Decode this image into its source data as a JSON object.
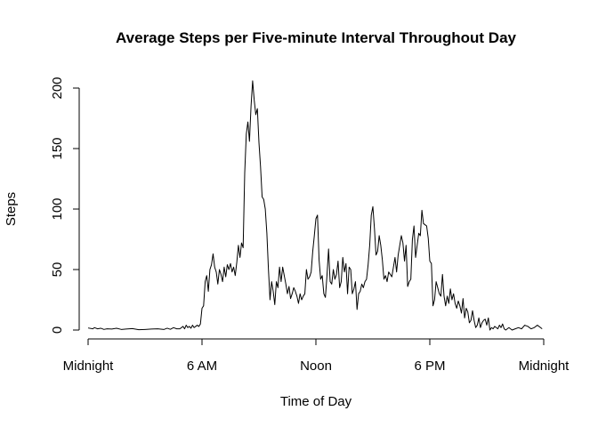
{
  "chart_data": {
    "type": "line",
    "title": "Average Steps per Five-minute Interval Throughout Day",
    "xlabel": "Time of Day",
    "ylabel": "Steps",
    "x_unit": "minutes since midnight",
    "xlim": [
      0,
      1440
    ],
    "ylim": [
      0,
      210
    ],
    "grid": false,
    "x_ticks": [
      {
        "value": 0,
        "label": "Midnight"
      },
      {
        "value": 360,
        "label": "6 AM"
      },
      {
        "value": 720,
        "label": "Noon"
      },
      {
        "value": 1080,
        "label": "6 PM"
      },
      {
        "value": 1440,
        "label": "Midnight"
      }
    ],
    "y_ticks": [
      0,
      50,
      100,
      150,
      200
    ],
    "series": [
      {
        "points": [
          [
            0,
            1.7
          ],
          [
            15,
            1
          ],
          [
            20,
            2
          ],
          [
            30,
            1
          ],
          [
            40,
            1.5
          ],
          [
            50,
            0.5
          ],
          [
            60,
            1
          ],
          [
            75,
            0.8
          ],
          [
            90,
            1.5
          ],
          [
            105,
            0.5
          ],
          [
            120,
            0.8
          ],
          [
            140,
            1.2
          ],
          [
            160,
            0.3
          ],
          [
            180,
            0.5
          ],
          [
            200,
            0.8
          ],
          [
            220,
            1
          ],
          [
            240,
            0.5
          ],
          [
            250,
            1.5
          ],
          [
            260,
            0.6
          ],
          [
            270,
            2
          ],
          [
            280,
            1
          ],
          [
            290,
            1
          ],
          [
            300,
            3
          ],
          [
            305,
            1
          ],
          [
            310,
            4
          ],
          [
            315,
            2
          ],
          [
            320,
            3
          ],
          [
            325,
            1.5
          ],
          [
            330,
            4
          ],
          [
            335,
            2
          ],
          [
            340,
            3
          ],
          [
            345,
            4
          ],
          [
            350,
            3
          ],
          [
            355,
            5
          ],
          [
            360,
            18
          ],
          [
            365,
            20
          ],
          [
            370,
            40
          ],
          [
            375,
            45
          ],
          [
            380,
            32
          ],
          [
            385,
            50
          ],
          [
            390,
            54
          ],
          [
            395,
            63
          ],
          [
            400,
            52
          ],
          [
            405,
            48
          ],
          [
            410,
            38
          ],
          [
            415,
            50
          ],
          [
            420,
            46
          ],
          [
            425,
            40
          ],
          [
            430,
            52
          ],
          [
            435,
            44
          ],
          [
            440,
            54
          ],
          [
            445,
            50
          ],
          [
            450,
            55
          ],
          [
            455,
            48
          ],
          [
            460,
            52
          ],
          [
            465,
            45
          ],
          [
            470,
            56
          ],
          [
            475,
            70
          ],
          [
            480,
            60
          ],
          [
            485,
            72
          ],
          [
            490,
            68
          ],
          [
            495,
            130
          ],
          [
            500,
            162
          ],
          [
            505,
            172
          ],
          [
            510,
            156
          ],
          [
            515,
            185
          ],
          [
            520,
            206
          ],
          [
            525,
            190
          ],
          [
            530,
            178
          ],
          [
            535,
            183
          ],
          [
            540,
            155
          ],
          [
            545,
            135
          ],
          [
            550,
            110
          ],
          [
            555,
            108
          ],
          [
            560,
            100
          ],
          [
            565,
            80
          ],
          [
            570,
            50
          ],
          [
            575,
            25
          ],
          [
            580,
            40
          ],
          [
            585,
            32
          ],
          [
            590,
            21
          ],
          [
            595,
            40
          ],
          [
            600,
            35
          ],
          [
            605,
            52
          ],
          [
            610,
            40
          ],
          [
            615,
            52
          ],
          [
            620,
            45
          ],
          [
            625,
            38
          ],
          [
            630,
            30
          ],
          [
            635,
            36
          ],
          [
            640,
            26
          ],
          [
            645,
            30
          ],
          [
            650,
            35
          ],
          [
            655,
            32
          ],
          [
            660,
            28
          ],
          [
            665,
            22
          ],
          [
            670,
            30
          ],
          [
            675,
            25
          ],
          [
            680,
            28
          ],
          [
            685,
            30
          ],
          [
            690,
            50
          ],
          [
            695,
            42
          ],
          [
            700,
            44
          ],
          [
            705,
            48
          ],
          [
            710,
            65
          ],
          [
            715,
            78
          ],
          [
            720,
            92
          ],
          [
            725,
            95
          ],
          [
            730,
            58
          ],
          [
            735,
            42
          ],
          [
            740,
            45
          ],
          [
            745,
            30
          ],
          [
            750,
            27
          ],
          [
            755,
            45
          ],
          [
            760,
            67
          ],
          [
            765,
            40
          ],
          [
            770,
            38
          ],
          [
            775,
            50
          ],
          [
            780,
            42
          ],
          [
            785,
            46
          ],
          [
            790,
            57
          ],
          [
            795,
            35
          ],
          [
            800,
            40
          ],
          [
            805,
            60
          ],
          [
            810,
            48
          ],
          [
            815,
            55
          ],
          [
            820,
            30
          ],
          [
            825,
            52
          ],
          [
            830,
            50
          ],
          [
            835,
            30
          ],
          [
            840,
            34
          ],
          [
            845,
            40
          ],
          [
            850,
            17
          ],
          [
            855,
            30
          ],
          [
            860,
            32
          ],
          [
            865,
            38
          ],
          [
            870,
            35
          ],
          [
            875,
            40
          ],
          [
            880,
            42
          ],
          [
            885,
            54
          ],
          [
            890,
            70
          ],
          [
            895,
            95
          ],
          [
            900,
            102
          ],
          [
            905,
            84
          ],
          [
            910,
            62
          ],
          [
            915,
            65
          ],
          [
            920,
            78
          ],
          [
            925,
            70
          ],
          [
            930,
            58
          ],
          [
            935,
            42
          ],
          [
            940,
            45
          ],
          [
            945,
            40
          ],
          [
            950,
            48
          ],
          [
            955,
            46
          ],
          [
            960,
            44
          ],
          [
            965,
            52
          ],
          [
            970,
            60
          ],
          [
            975,
            48
          ],
          [
            980,
            62
          ],
          [
            985,
            70
          ],
          [
            990,
            78
          ],
          [
            995,
            72
          ],
          [
            1000,
            57
          ],
          [
            1005,
            70
          ],
          [
            1010,
            36
          ],
          [
            1015,
            40
          ],
          [
            1020,
            42
          ],
          [
            1025,
            75
          ],
          [
            1030,
            86
          ],
          [
            1035,
            60
          ],
          [
            1040,
            70
          ],
          [
            1045,
            80
          ],
          [
            1050,
            78
          ],
          [
            1055,
            99
          ],
          [
            1060,
            88
          ],
          [
            1065,
            87
          ],
          [
            1070,
            86
          ],
          [
            1075,
            76
          ],
          [
            1080,
            57
          ],
          [
            1085,
            55
          ],
          [
            1090,
            20
          ],
          [
            1095,
            25
          ],
          [
            1100,
            40
          ],
          [
            1105,
            35
          ],
          [
            1110,
            30
          ],
          [
            1115,
            28
          ],
          [
            1120,
            46
          ],
          [
            1125,
            28
          ],
          [
            1130,
            20
          ],
          [
            1135,
            28
          ],
          [
            1140,
            22
          ],
          [
            1145,
            34
          ],
          [
            1150,
            25
          ],
          [
            1155,
            30
          ],
          [
            1160,
            22
          ],
          [
            1165,
            18
          ],
          [
            1170,
            24
          ],
          [
            1175,
            20
          ],
          [
            1180,
            14
          ],
          [
            1185,
            26
          ],
          [
            1190,
            10
          ],
          [
            1195,
            18
          ],
          [
            1200,
            15
          ],
          [
            1205,
            6
          ],
          [
            1210,
            8
          ],
          [
            1215,
            16
          ],
          [
            1220,
            8
          ],
          [
            1225,
            2
          ],
          [
            1230,
            4
          ],
          [
            1235,
            10
          ],
          [
            1240,
            2
          ],
          [
            1245,
            6
          ],
          [
            1250,
            8
          ],
          [
            1255,
            9
          ],
          [
            1260,
            4
          ],
          [
            1265,
            10
          ],
          [
            1270,
            0
          ],
          [
            1275,
            2
          ],
          [
            1280,
            1
          ],
          [
            1285,
            3
          ],
          [
            1290,
            2
          ],
          [
            1295,
            1
          ],
          [
            1300,
            4
          ],
          [
            1305,
            2
          ],
          [
            1310,
            5
          ],
          [
            1315,
            1
          ],
          [
            1320,
            0
          ],
          [
            1330,
            2
          ],
          [
            1340,
            0
          ],
          [
            1350,
            1
          ],
          [
            1360,
            2
          ],
          [
            1370,
            1
          ],
          [
            1380,
            4
          ],
          [
            1390,
            3
          ],
          [
            1400,
            1
          ],
          [
            1410,
            2
          ],
          [
            1420,
            4
          ],
          [
            1430,
            2
          ],
          [
            1435,
            1
          ]
        ]
      }
    ]
  }
}
